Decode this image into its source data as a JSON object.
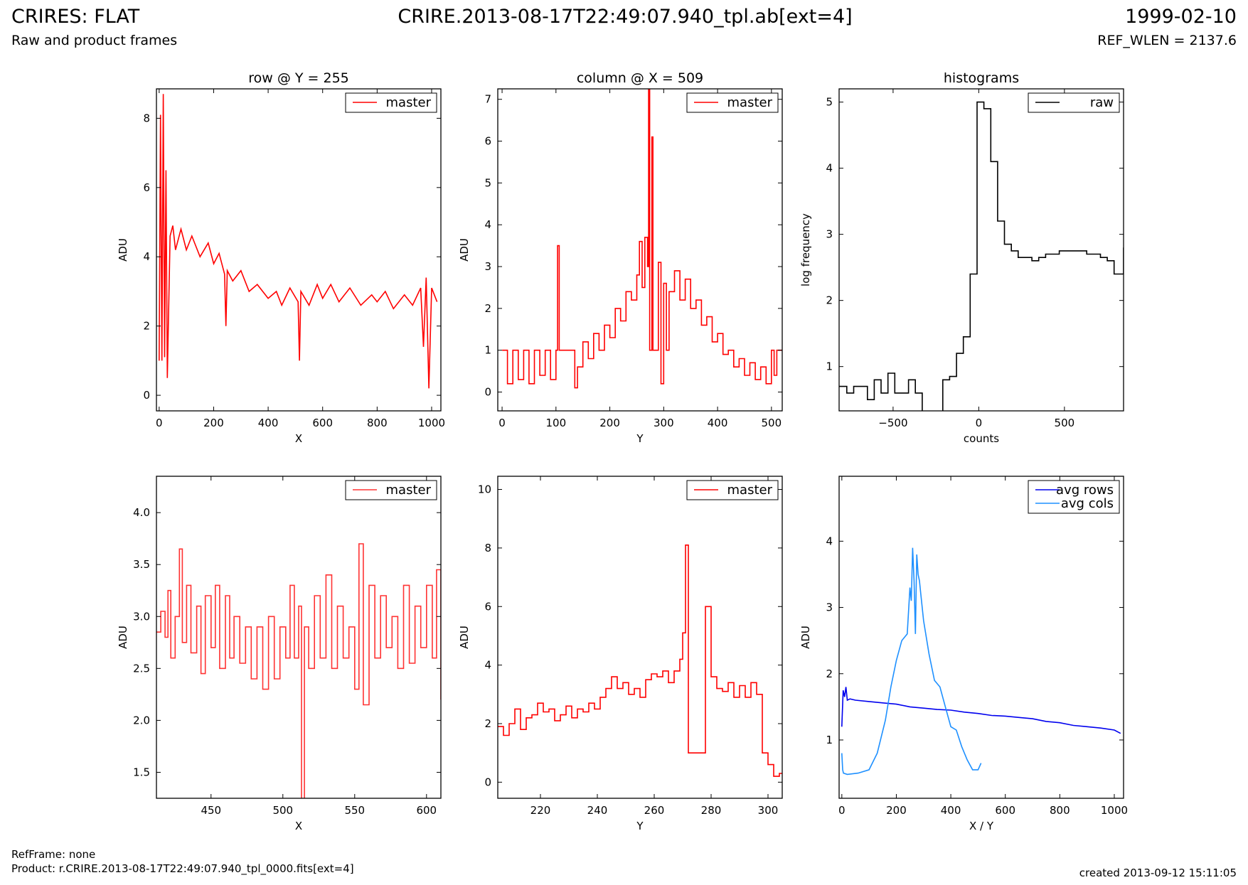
{
  "header": {
    "title_left": "CRIRES: FLAT",
    "title_center": "CRIRE.2013-08-17T22:49:07.940_tpl.ab[ext=4]",
    "title_right": "1999-02-10",
    "subtitle_left": "Raw and product frames",
    "subtitle_right": "REF_WLEN = 2137.6"
  },
  "footer": {
    "refframe": "RefFrame: none",
    "product": "Product: r.CRIRE.2013-08-17T22:49:07.940_tpl_0000.fits[ext=4]",
    "created": "created 2013-09-12 15:11:05"
  },
  "colors": {
    "master": "#ff0000",
    "raw": "#000000",
    "avg_rows": "#0000ee",
    "avg_cols": "#1e90ff"
  },
  "chart_data": [
    {
      "id": "row-plot",
      "type": "line",
      "title": "row @ Y = 255",
      "xlabel": "X",
      "ylabel": "ADU",
      "xlim": [
        -10,
        1034
      ],
      "ylim": [
        -0.45,
        8.85
      ],
      "xticks": [
        0,
        200,
        400,
        600,
        800,
        1000
      ],
      "yticks": [
        0,
        2,
        4,
        6,
        8
      ],
      "legend": "top-right",
      "series": [
        {
          "name": "master",
          "color": "#ff0000",
          "step": false,
          "x": [
            0,
            5,
            10,
            15,
            20,
            25,
            30,
            40,
            50,
            60,
            80,
            100,
            120,
            150,
            180,
            200,
            220,
            240,
            245,
            250,
            270,
            300,
            330,
            360,
            400,
            430,
            450,
            480,
            510,
            515,
            520,
            550,
            580,
            600,
            630,
            660,
            700,
            740,
            780,
            800,
            830,
            860,
            900,
            930,
            960,
            970,
            980,
            990,
            1000,
            1020
          ],
          "y": [
            1.0,
            8.1,
            1.0,
            8.7,
            1.1,
            6.5,
            0.5,
            4.6,
            4.9,
            4.2,
            4.8,
            4.2,
            4.6,
            4.0,
            4.4,
            3.8,
            4.1,
            3.5,
            2.0,
            3.6,
            3.3,
            3.6,
            3.0,
            3.2,
            2.8,
            3.0,
            2.6,
            3.1,
            2.7,
            1.0,
            3.0,
            2.6,
            3.2,
            2.8,
            3.2,
            2.7,
            3.1,
            2.6,
            2.9,
            2.7,
            3.0,
            2.5,
            2.9,
            2.6,
            3.1,
            1.4,
            3.4,
            0.2,
            3.1,
            2.7
          ]
        }
      ]
    },
    {
      "id": "column-plot",
      "type": "line",
      "title": "column @ X = 509",
      "xlabel": "Y",
      "ylabel": "ADU",
      "xlim": [
        -8,
        520
      ],
      "ylim": [
        -0.45,
        7.25
      ],
      "xticks": [
        0,
        100,
        200,
        300,
        400,
        500
      ],
      "yticks": [
        0,
        1,
        2,
        3,
        4,
        5,
        6,
        7
      ],
      "legend": "top-right",
      "series": [
        {
          "name": "master",
          "color": "#ff0000",
          "step": true,
          "x": [
            0,
            10,
            20,
            30,
            40,
            50,
            60,
            70,
            80,
            90,
            100,
            103,
            106,
            130,
            135,
            140,
            150,
            160,
            170,
            180,
            190,
            200,
            210,
            220,
            230,
            240,
            250,
            255,
            260,
            265,
            270,
            272,
            274,
            276,
            278,
            280,
            282,
            290,
            295,
            300,
            305,
            310,
            320,
            330,
            340,
            350,
            360,
            370,
            380,
            390,
            400,
            410,
            420,
            430,
            440,
            450,
            460,
            470,
            480,
            490,
            500,
            505,
            510
          ],
          "y": [
            1.0,
            0.2,
            1.0,
            0.3,
            1.0,
            0.2,
            1.0,
            0.4,
            1.0,
            0.3,
            1.0,
            3.5,
            1.0,
            1.0,
            0.1,
            0.6,
            1.2,
            0.8,
            1.4,
            1.0,
            1.6,
            1.3,
            2.0,
            1.7,
            2.4,
            2.2,
            2.8,
            3.6,
            2.5,
            3.7,
            3.0,
            7.3,
            1.0,
            1.0,
            6.1,
            1.0,
            1.0,
            3.1,
            0.2,
            2.6,
            1.0,
            2.4,
            2.9,
            2.2,
            2.7,
            2.0,
            2.2,
            1.6,
            1.8,
            1.2,
            1.4,
            0.9,
            1.0,
            0.6,
            0.8,
            0.4,
            0.7,
            0.3,
            0.6,
            0.2,
            1.0,
            0.4,
            1.0
          ]
        }
      ]
    },
    {
      "id": "histogram-plot",
      "type": "line",
      "title": "histograms",
      "xlabel": "counts",
      "ylabel": "log frequency",
      "xlim": [
        -815,
        845
      ],
      "ylim": [
        0.33,
        5.2
      ],
      "xticks": [
        -500,
        0,
        500
      ],
      "yticks": [
        1,
        2,
        3,
        4,
        5
      ],
      "legend": "top-right",
      "series": [
        {
          "name": "raw",
          "color": "#000000",
          "step": true,
          "x": [
            -815,
            -770,
            -730,
            -690,
            -650,
            -610,
            -570,
            -530,
            -490,
            -450,
            -410,
            -370,
            -330,
            -290,
            -250,
            -210,
            -170,
            -130,
            -90,
            -50,
            -10,
            30,
            70,
            110,
            150,
            190,
            230,
            270,
            310,
            350,
            390,
            430,
            470,
            510,
            550,
            590,
            630,
            670,
            710,
            750,
            790,
            845
          ],
          "y": [
            0.7,
            0.6,
            0.7,
            0.7,
            0.5,
            0.8,
            0.6,
            0.9,
            0.6,
            0.6,
            0.8,
            0.6,
            0.3,
            -1,
            0.3,
            0.8,
            0.85,
            1.2,
            1.45,
            2.4,
            5.0,
            4.9,
            4.1,
            3.2,
            2.85,
            2.75,
            2.65,
            2.65,
            2.6,
            2.65,
            2.7,
            2.7,
            2.75,
            2.75,
            2.75,
            2.75,
            2.7,
            2.7,
            2.65,
            2.6,
            2.4,
            2.8
          ]
        }
      ]
    },
    {
      "id": "row-zoom-plot",
      "type": "line",
      "title": "",
      "xlabel": "X",
      "ylabel": "ADU",
      "xlim": [
        412,
        610
      ],
      "ylim": [
        1.25,
        4.35
      ],
      "xticks": [
        450,
        500,
        550,
        600
      ],
      "yticks": [
        1.5,
        2.0,
        2.5,
        3.0,
        3.5,
        4.0
      ],
      "legend": "top-right",
      "series": [
        {
          "name": "master",
          "color": "#ff3333",
          "step": true,
          "x": [
            412,
            415,
            418,
            420,
            422,
            425,
            428,
            430,
            433,
            436,
            440,
            443,
            446,
            450,
            453,
            456,
            460,
            463,
            466,
            470,
            474,
            478,
            482,
            486,
            490,
            494,
            498,
            502,
            505,
            508,
            511,
            513,
            515,
            518,
            522,
            526,
            530,
            534,
            538,
            542,
            546,
            550,
            553,
            556,
            560,
            564,
            568,
            572,
            576,
            580,
            584,
            588,
            592,
            596,
            600,
            604,
            607,
            610
          ],
          "y": [
            2.85,
            3.05,
            2.8,
            3.25,
            2.6,
            3.0,
            3.65,
            2.75,
            3.3,
            2.65,
            3.1,
            2.45,
            3.2,
            2.7,
            3.3,
            2.5,
            3.2,
            2.6,
            3.0,
            2.55,
            2.9,
            2.4,
            2.9,
            2.3,
            3.0,
            2.4,
            2.9,
            2.6,
            3.3,
            2.6,
            3.1,
            1.2,
            2.9,
            2.5,
            3.2,
            2.6,
            3.4,
            2.5,
            3.1,
            2.6,
            2.9,
            2.3,
            3.7,
            2.15,
            3.3,
            2.6,
            3.2,
            2.7,
            3.0,
            2.5,
            3.3,
            2.55,
            3.1,
            2.7,
            3.3,
            2.6,
            3.45,
            2.2
          ]
        }
      ]
    },
    {
      "id": "column-zoom-plot",
      "type": "line",
      "title": "",
      "xlabel": "Y",
      "ylabel": "ADU",
      "xlim": [
        205,
        305
      ],
      "ylim": [
        -0.55,
        10.45
      ],
      "xticks": [
        220,
        240,
        260,
        280,
        300
      ],
      "yticks": [
        0,
        2,
        4,
        6,
        8,
        10
      ],
      "legend": "top-right",
      "series": [
        {
          "name": "master",
          "color": "#ff0000",
          "step": true,
          "x": [
            205,
            207,
            209,
            211,
            213,
            215,
            217,
            219,
            221,
            223,
            225,
            227,
            229,
            231,
            233,
            235,
            237,
            239,
            241,
            243,
            245,
            247,
            249,
            251,
            253,
            255,
            257,
            259,
            261,
            263,
            265,
            267,
            269,
            270,
            271,
            272,
            274,
            278,
            280,
            282,
            284,
            286,
            288,
            290,
            292,
            294,
            296,
            298,
            300,
            302,
            304
          ],
          "y": [
            1.9,
            1.6,
            2.0,
            2.5,
            1.8,
            2.2,
            2.3,
            2.7,
            2.4,
            2.5,
            2.1,
            2.3,
            2.6,
            2.2,
            2.5,
            2.4,
            2.7,
            2.5,
            2.9,
            3.2,
            3.6,
            3.2,
            3.4,
            3.0,
            3.2,
            2.9,
            3.5,
            3.7,
            3.6,
            3.8,
            3.4,
            3.8,
            4.2,
            5.1,
            8.1,
            1.0,
            1.0,
            6.0,
            3.6,
            3.2,
            3.1,
            3.4,
            2.9,
            3.3,
            2.9,
            3.4,
            3.0,
            1.0,
            0.6,
            0.2,
            0.3
          ]
        }
      ]
    },
    {
      "id": "average-plot",
      "type": "line",
      "title": "",
      "xlabel": "X / Y",
      "ylabel": "ADU",
      "xlim": [
        -10,
        1034
      ],
      "ylim": [
        0.12,
        4.98
      ],
      "xticks": [
        0,
        200,
        400,
        600,
        800,
        1000
      ],
      "yticks": [
        1,
        2,
        3,
        4
      ],
      "legend": "top-right",
      "series": [
        {
          "name": "avg rows",
          "color": "#0000ee",
          "step": false,
          "x": [
            0,
            5,
            10,
            15,
            20,
            30,
            50,
            100,
            150,
            200,
            250,
            300,
            350,
            400,
            450,
            500,
            550,
            600,
            650,
            700,
            750,
            800,
            850,
            900,
            950,
            1000,
            1023
          ],
          "y": [
            1.2,
            1.75,
            1.65,
            1.8,
            1.6,
            1.62,
            1.6,
            1.58,
            1.56,
            1.54,
            1.5,
            1.48,
            1.46,
            1.45,
            1.42,
            1.4,
            1.37,
            1.36,
            1.34,
            1.32,
            1.28,
            1.26,
            1.22,
            1.2,
            1.18,
            1.15,
            1.1
          ]
        },
        {
          "name": "avg cols",
          "color": "#1e90ff",
          "step": false,
          "x": [
            0,
            3,
            6,
            20,
            60,
            100,
            130,
            160,
            180,
            200,
            220,
            240,
            250,
            255,
            260,
            265,
            270,
            275,
            280,
            285,
            290,
            300,
            320,
            340,
            360,
            380,
            400,
            420,
            440,
            460,
            480,
            500,
            511
          ],
          "y": [
            0.8,
            0.55,
            0.5,
            0.48,
            0.5,
            0.55,
            0.8,
            1.3,
            1.8,
            2.2,
            2.5,
            2.6,
            3.3,
            3.1,
            3.9,
            3.4,
            2.6,
            3.8,
            3.5,
            3.4,
            3.2,
            2.8,
            2.3,
            1.9,
            1.8,
            1.5,
            1.2,
            1.15,
            0.9,
            0.7,
            0.55,
            0.55,
            0.65
          ]
        }
      ]
    }
  ]
}
